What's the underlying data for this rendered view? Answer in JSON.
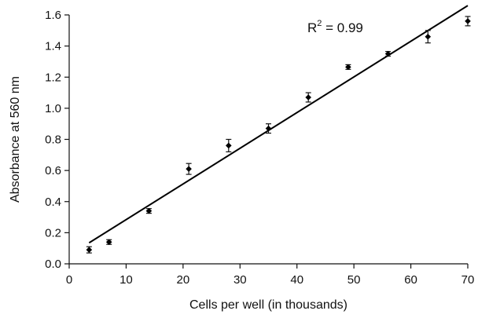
{
  "chart_data": {
    "type": "scatter",
    "title": "",
    "xlabel": "Cells per well (in thousands)",
    "ylabel": "Absorbance at 560 nm",
    "xlim": [
      0,
      70
    ],
    "ylim": [
      0,
      1.6
    ],
    "xticks": [
      0,
      10,
      20,
      30,
      40,
      50,
      60,
      70
    ],
    "yticks": [
      0.0,
      0.2,
      0.4,
      0.6,
      0.8,
      1.0,
      1.2,
      1.4,
      1.6
    ],
    "xtick_labels": [
      "0",
      "10",
      "20",
      "30",
      "40",
      "50",
      "60",
      "70"
    ],
    "ytick_labels": [
      "0.0",
      "0.2",
      "0.4",
      "0.6",
      "0.8",
      "1.0",
      "1.2",
      "1.4",
      "1.6"
    ],
    "grid": false,
    "points": [
      {
        "x": 3.5,
        "y": 0.09,
        "err": 0.02
      },
      {
        "x": 7,
        "y": 0.14,
        "err": 0.015
      },
      {
        "x": 14,
        "y": 0.34,
        "err": 0.015
      },
      {
        "x": 21,
        "y": 0.61,
        "err": 0.035
      },
      {
        "x": 28,
        "y": 0.76,
        "err": 0.04
      },
      {
        "x": 35,
        "y": 0.87,
        "err": 0.03
      },
      {
        "x": 42,
        "y": 1.07,
        "err": 0.03
      },
      {
        "x": 49,
        "y": 1.265,
        "err": 0.015
      },
      {
        "x": 56,
        "y": 1.35,
        "err": 0.015
      },
      {
        "x": 63,
        "y": 1.46,
        "err": 0.04
      },
      {
        "x": 70,
        "y": 1.56,
        "err": 0.03
      }
    ],
    "trendline": {
      "x_start": 3.5,
      "y_start": 0.135,
      "x_end": 70,
      "y_end": 1.66
    },
    "annotation": {
      "base": "R",
      "sup": "2",
      "rest": " = 0.99"
    }
  }
}
